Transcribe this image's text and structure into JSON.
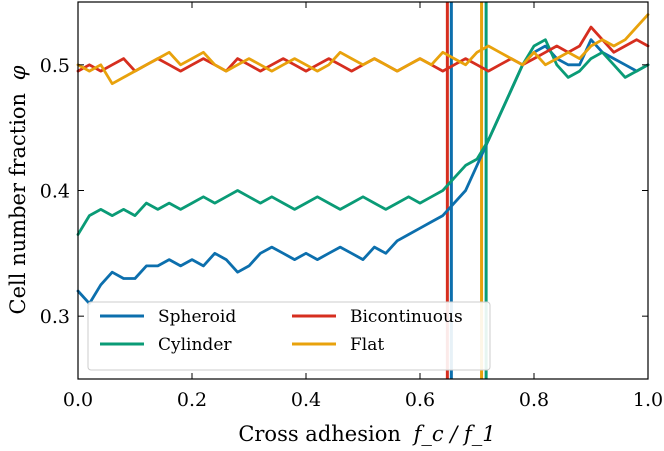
{
  "chart_data": {
    "type": "line",
    "title": "",
    "xlabel": "Cross adhesion",
    "xlabel_math": "f_c / f_1",
    "ylabel": "Cell number fraction",
    "ylabel_math": "φ",
    "xlim": [
      0.0,
      1.0
    ],
    "ylim": [
      0.25,
      0.55
    ],
    "xticks": [
      0.0,
      0.2,
      0.4,
      0.6,
      0.8,
      1.0
    ],
    "xtick_labels": [
      "0.0",
      "0.2",
      "0.4",
      "0.6",
      "0.8",
      "1.0"
    ],
    "yticks": [
      0.3,
      0.4,
      0.5
    ],
    "ytick_labels": [
      "0.3",
      "0.4",
      "0.5"
    ],
    "grid": false,
    "legend_position": "bottom-left",
    "legend_columns": 2,
    "series": [
      {
        "name": "Spheroid",
        "color": "#0c6fad",
        "x": [
          0.0,
          0.02,
          0.04,
          0.06,
          0.08,
          0.1,
          0.12,
          0.14,
          0.16,
          0.18,
          0.2,
          0.22,
          0.24,
          0.26,
          0.28,
          0.3,
          0.32,
          0.34,
          0.36,
          0.38,
          0.4,
          0.42,
          0.44,
          0.46,
          0.48,
          0.5,
          0.52,
          0.54,
          0.56,
          0.58,
          0.6,
          0.62,
          0.64,
          0.66,
          0.68,
          0.7,
          0.72,
          0.74,
          0.76,
          0.78,
          0.8,
          0.82,
          0.84,
          0.86,
          0.88,
          0.9,
          0.92,
          0.94,
          0.96,
          0.98,
          1.0
        ],
        "values": [
          0.32,
          0.31,
          0.325,
          0.335,
          0.33,
          0.33,
          0.34,
          0.34,
          0.345,
          0.34,
          0.345,
          0.34,
          0.35,
          0.345,
          0.335,
          0.34,
          0.35,
          0.355,
          0.35,
          0.345,
          0.35,
          0.345,
          0.35,
          0.355,
          0.35,
          0.345,
          0.355,
          0.35,
          0.36,
          0.365,
          0.37,
          0.375,
          0.38,
          0.39,
          0.4,
          0.42,
          0.44,
          0.46,
          0.48,
          0.5,
          0.51,
          0.515,
          0.505,
          0.5,
          0.5,
          0.52,
          0.51,
          0.505,
          0.5,
          0.495,
          0.5
        ]
      },
      {
        "name": "Cylinder",
        "color": "#0a9b76",
        "x": [
          0.0,
          0.02,
          0.04,
          0.06,
          0.08,
          0.1,
          0.12,
          0.14,
          0.16,
          0.18,
          0.2,
          0.22,
          0.24,
          0.26,
          0.28,
          0.3,
          0.32,
          0.34,
          0.36,
          0.38,
          0.4,
          0.42,
          0.44,
          0.46,
          0.48,
          0.5,
          0.52,
          0.54,
          0.56,
          0.58,
          0.6,
          0.62,
          0.64,
          0.66,
          0.68,
          0.7,
          0.72,
          0.74,
          0.76,
          0.78,
          0.8,
          0.82,
          0.84,
          0.86,
          0.88,
          0.9,
          0.92,
          0.94,
          0.96,
          0.98,
          1.0
        ],
        "values": [
          0.365,
          0.38,
          0.385,
          0.38,
          0.385,
          0.38,
          0.39,
          0.385,
          0.39,
          0.385,
          0.39,
          0.395,
          0.39,
          0.395,
          0.4,
          0.395,
          0.39,
          0.395,
          0.39,
          0.385,
          0.39,
          0.395,
          0.39,
          0.385,
          0.39,
          0.395,
          0.39,
          0.385,
          0.39,
          0.395,
          0.39,
          0.395,
          0.4,
          0.41,
          0.42,
          0.425,
          0.44,
          0.46,
          0.48,
          0.5,
          0.515,
          0.52,
          0.5,
          0.49,
          0.495,
          0.505,
          0.51,
          0.5,
          0.49,
          0.495,
          0.5
        ]
      },
      {
        "name": "Bicontinuous",
        "color": "#d62e1f",
        "x": [
          0.0,
          0.02,
          0.04,
          0.06,
          0.08,
          0.1,
          0.12,
          0.14,
          0.16,
          0.18,
          0.2,
          0.22,
          0.24,
          0.26,
          0.28,
          0.3,
          0.32,
          0.34,
          0.36,
          0.38,
          0.4,
          0.42,
          0.44,
          0.46,
          0.48,
          0.5,
          0.52,
          0.54,
          0.56,
          0.58,
          0.6,
          0.62,
          0.64,
          0.66,
          0.68,
          0.7,
          0.72,
          0.74,
          0.76,
          0.78,
          0.8,
          0.82,
          0.84,
          0.86,
          0.88,
          0.9,
          0.92,
          0.94,
          0.96,
          0.98,
          1.0
        ],
        "values": [
          0.495,
          0.5,
          0.495,
          0.5,
          0.505,
          0.495,
          0.5,
          0.505,
          0.5,
          0.495,
          0.5,
          0.505,
          0.5,
          0.495,
          0.505,
          0.5,
          0.495,
          0.5,
          0.505,
          0.5,
          0.495,
          0.5,
          0.505,
          0.5,
          0.495,
          0.5,
          0.505,
          0.5,
          0.495,
          0.5,
          0.505,
          0.5,
          0.495,
          0.5,
          0.505,
          0.5,
          0.495,
          0.5,
          0.505,
          0.5,
          0.505,
          0.51,
          0.515,
          0.51,
          0.515,
          0.53,
          0.52,
          0.51,
          0.515,
          0.52,
          0.515
        ]
      },
      {
        "name": "Flat",
        "color": "#e8a20c",
        "x": [
          0.0,
          0.02,
          0.04,
          0.06,
          0.08,
          0.1,
          0.12,
          0.14,
          0.16,
          0.18,
          0.2,
          0.22,
          0.24,
          0.26,
          0.28,
          0.3,
          0.32,
          0.34,
          0.36,
          0.38,
          0.4,
          0.42,
          0.44,
          0.46,
          0.48,
          0.5,
          0.52,
          0.54,
          0.56,
          0.58,
          0.6,
          0.62,
          0.64,
          0.66,
          0.68,
          0.7,
          0.72,
          0.74,
          0.76,
          0.78,
          0.8,
          0.82,
          0.84,
          0.86,
          0.88,
          0.9,
          0.92,
          0.94,
          0.96,
          0.98,
          1.0
        ],
        "values": [
          0.5,
          0.495,
          0.5,
          0.485,
          0.49,
          0.495,
          0.5,
          0.505,
          0.51,
          0.5,
          0.505,
          0.51,
          0.5,
          0.495,
          0.5,
          0.505,
          0.5,
          0.495,
          0.5,
          0.505,
          0.5,
          0.495,
          0.5,
          0.51,
          0.505,
          0.5,
          0.505,
          0.5,
          0.495,
          0.5,
          0.505,
          0.5,
          0.51,
          0.505,
          0.5,
          0.51,
          0.515,
          0.51,
          0.505,
          0.5,
          0.51,
          0.5,
          0.505,
          0.51,
          0.505,
          0.515,
          0.52,
          0.515,
          0.52,
          0.53,
          0.54
        ]
      }
    ],
    "vlines": [
      {
        "x": 0.648,
        "color": "#d62e1f"
      },
      {
        "x": 0.655,
        "color": "#0c6fad"
      },
      {
        "x": 0.708,
        "color": "#e8a20c"
      },
      {
        "x": 0.716,
        "color": "#0a9b76"
      }
    ]
  }
}
